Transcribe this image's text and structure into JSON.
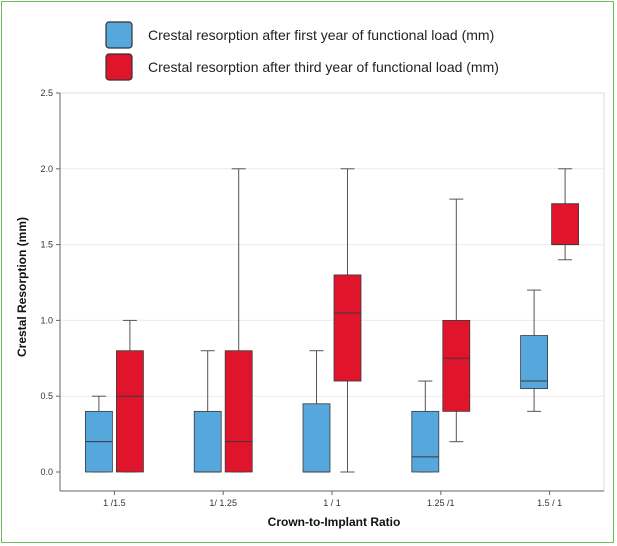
{
  "chart_data": {
    "type": "box",
    "xlabel": "Crown-to-Implant Ratio",
    "ylabel": "Crestal Resorption (mm)",
    "ylim": [
      0,
      2.5
    ],
    "yticks": [
      "0.0",
      "0.5",
      "1.0",
      "1.5",
      "2.0",
      "2.5"
    ],
    "categories": [
      "1 /1.5",
      "1/ 1.25",
      "1 / 1",
      "1.25 /1",
      "1.5 / 1"
    ],
    "grid": true,
    "legend_position": "top",
    "series": [
      {
        "name": "Crestal resorption after first year of functional load (mm)",
        "color": "#56a7dc",
        "boxes": [
          {
            "min": 0.0,
            "q1": 0.0,
            "median": 0.2,
            "q3": 0.4,
            "max": 0.5
          },
          {
            "min": 0.0,
            "q1": 0.0,
            "median": 0.0,
            "q3": 0.4,
            "max": 0.8
          },
          {
            "min": 0.0,
            "q1": 0.0,
            "median": 0.0,
            "q3": 0.45,
            "max": 0.8
          },
          {
            "min": 0.0,
            "q1": 0.0,
            "median": 0.1,
            "q3": 0.4,
            "max": 0.6
          },
          {
            "min": 0.4,
            "q1": 0.55,
            "median": 0.6,
            "q3": 0.9,
            "max": 1.2
          }
        ]
      },
      {
        "name": "Crestal resorption after third year of functional load (mm)",
        "color": "#e0142b",
        "boxes": [
          {
            "min": 0.0,
            "q1": 0.0,
            "median": 0.5,
            "q3": 0.8,
            "max": 1.0
          },
          {
            "min": 0.0,
            "q1": 0.0,
            "median": 0.2,
            "q3": 0.8,
            "max": 2.0
          },
          {
            "min": 0.0,
            "q1": 0.6,
            "median": 1.05,
            "q3": 1.3,
            "max": 2.0
          },
          {
            "min": 0.2,
            "q1": 0.4,
            "median": 0.75,
            "q3": 1.0,
            "max": 1.8
          },
          {
            "min": 1.4,
            "q1": 1.5,
            "median": 1.5,
            "q3": 1.77,
            "max": 2.0
          }
        ]
      }
    ]
  }
}
